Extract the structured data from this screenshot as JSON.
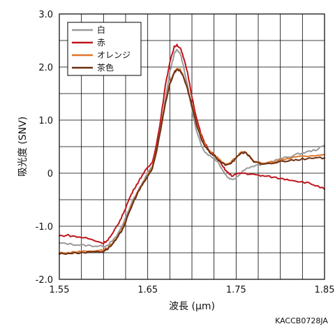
{
  "chart_data": {
    "type": "line",
    "xlabel": "波長 (μm)",
    "ylabel": "吸光度 (SNV)",
    "xlim": [
      1.55,
      1.85
    ],
    "ylim": [
      -2.0,
      3.0
    ],
    "xticks": [
      1.55,
      1.65,
      1.75,
      1.85
    ],
    "xtick_labels": [
      "1.55",
      "1.65",
      "1.75",
      "1.85"
    ],
    "yticks": [
      -2.0,
      -1.0,
      0,
      1.0,
      2.0,
      3.0
    ],
    "ytick_labels": [
      "-2.0",
      "-1.0",
      "0",
      "1.0",
      "2.0",
      "3.0"
    ],
    "grid": true,
    "legend_position": "top-left",
    "series": [
      {
        "name": "白",
        "color": "#999999",
        "points": [
          [
            1.55,
            -1.32
          ],
          [
            1.56,
            -1.33
          ],
          [
            1.57,
            -1.35
          ],
          [
            1.58,
            -1.36
          ],
          [
            1.59,
            -1.37
          ],
          [
            1.6,
            -1.38
          ],
          [
            1.605,
            -1.35
          ],
          [
            1.61,
            -1.28
          ],
          [
            1.615,
            -1.18
          ],
          [
            1.62,
            -1.02
          ],
          [
            1.625,
            -0.85
          ],
          [
            1.63,
            -0.63
          ],
          [
            1.635,
            -0.45
          ],
          [
            1.64,
            -0.3
          ],
          [
            1.645,
            -0.15
          ],
          [
            1.65,
            0.0
          ],
          [
            1.655,
            0.12
          ],
          [
            1.66,
            0.4
          ],
          [
            1.665,
            0.85
          ],
          [
            1.67,
            1.4
          ],
          [
            1.675,
            1.9
          ],
          [
            1.68,
            2.25
          ],
          [
            1.683,
            2.32
          ],
          [
            1.687,
            2.25
          ],
          [
            1.69,
            2.05
          ],
          [
            1.695,
            1.65
          ],
          [
            1.7,
            1.2
          ],
          [
            1.705,
            0.8
          ],
          [
            1.71,
            0.55
          ],
          [
            1.715,
            0.4
          ],
          [
            1.72,
            0.33
          ],
          [
            1.725,
            0.28
          ],
          [
            1.73,
            0.2
          ],
          [
            1.735,
            0.05
          ],
          [
            1.74,
            -0.07
          ],
          [
            1.745,
            -0.12
          ],
          [
            1.75,
            -0.08
          ],
          [
            1.755,
            0.0
          ],
          [
            1.76,
            0.08
          ],
          [
            1.77,
            0.13
          ],
          [
            1.78,
            0.17
          ],
          [
            1.79,
            0.22
          ],
          [
            1.8,
            0.27
          ],
          [
            1.81,
            0.31
          ],
          [
            1.82,
            0.36
          ],
          [
            1.83,
            0.4
          ],
          [
            1.84,
            0.44
          ],
          [
            1.85,
            0.52
          ]
        ]
      },
      {
        "name": "赤",
        "color": "#c0151c",
        "points": [
          [
            1.55,
            -1.18
          ],
          [
            1.56,
            -1.17
          ],
          [
            1.57,
            -1.2
          ],
          [
            1.58,
            -1.22
          ],
          [
            1.59,
            -1.27
          ],
          [
            1.6,
            -1.32
          ],
          [
            1.605,
            -1.25
          ],
          [
            1.61,
            -1.15
          ],
          [
            1.615,
            -1.0
          ],
          [
            1.62,
            -0.85
          ],
          [
            1.625,
            -0.65
          ],
          [
            1.63,
            -0.45
          ],
          [
            1.635,
            -0.28
          ],
          [
            1.64,
            -0.15
          ],
          [
            1.645,
            0.0
          ],
          [
            1.65,
            0.1
          ],
          [
            1.655,
            0.2
          ],
          [
            1.66,
            0.55
          ],
          [
            1.665,
            1.05
          ],
          [
            1.67,
            1.65
          ],
          [
            1.675,
            2.1
          ],
          [
            1.68,
            2.38
          ],
          [
            1.683,
            2.42
          ],
          [
            1.687,
            2.35
          ],
          [
            1.69,
            2.2
          ],
          [
            1.695,
            1.9
          ],
          [
            1.7,
            1.45
          ],
          [
            1.705,
            1.05
          ],
          [
            1.71,
            0.75
          ],
          [
            1.715,
            0.55
          ],
          [
            1.72,
            0.42
          ],
          [
            1.725,
            0.35
          ],
          [
            1.73,
            0.25
          ],
          [
            1.735,
            0.12
          ],
          [
            1.74,
            0.02
          ],
          [
            1.745,
            -0.05
          ],
          [
            1.75,
            -0.02
          ],
          [
            1.755,
            0.0
          ],
          [
            1.76,
            0.0
          ],
          [
            1.77,
            -0.03
          ],
          [
            1.78,
            -0.05
          ],
          [
            1.79,
            -0.07
          ],
          [
            1.8,
            -0.1
          ],
          [
            1.81,
            -0.12
          ],
          [
            1.82,
            -0.15
          ],
          [
            1.83,
            -0.18
          ],
          [
            1.84,
            -0.23
          ],
          [
            1.85,
            -0.3
          ]
        ]
      },
      {
        "name": "オレンジ",
        "color": "#e0762a",
        "points": [
          [
            1.55,
            -1.5
          ],
          [
            1.56,
            -1.5
          ],
          [
            1.57,
            -1.48
          ],
          [
            1.58,
            -1.47
          ],
          [
            1.59,
            -1.46
          ],
          [
            1.6,
            -1.45
          ],
          [
            1.605,
            -1.4
          ],
          [
            1.61,
            -1.32
          ],
          [
            1.615,
            -1.22
          ],
          [
            1.62,
            -1.08
          ],
          [
            1.625,
            -0.9
          ],
          [
            1.63,
            -0.68
          ],
          [
            1.635,
            -0.48
          ],
          [
            1.64,
            -0.32
          ],
          [
            1.645,
            -0.18
          ],
          [
            1.65,
            -0.05
          ],
          [
            1.655,
            0.1
          ],
          [
            1.66,
            0.42
          ],
          [
            1.665,
            0.88
          ],
          [
            1.67,
            1.35
          ],
          [
            1.675,
            1.7
          ],
          [
            1.68,
            1.92
          ],
          [
            1.683,
            1.97
          ],
          [
            1.687,
            1.95
          ],
          [
            1.69,
            1.85
          ],
          [
            1.695,
            1.6
          ],
          [
            1.7,
            1.3
          ],
          [
            1.705,
            0.95
          ],
          [
            1.71,
            0.7
          ],
          [
            1.715,
            0.52
          ],
          [
            1.72,
            0.42
          ],
          [
            1.725,
            0.35
          ],
          [
            1.73,
            0.27
          ],
          [
            1.735,
            0.2
          ],
          [
            1.74,
            0.17
          ],
          [
            1.745,
            0.22
          ],
          [
            1.75,
            0.3
          ],
          [
            1.755,
            0.4
          ],
          [
            1.76,
            0.4
          ],
          [
            1.765,
            0.33
          ],
          [
            1.77,
            0.23
          ],
          [
            1.78,
            0.18
          ],
          [
            1.79,
            0.2
          ],
          [
            1.8,
            0.25
          ],
          [
            1.81,
            0.28
          ],
          [
            1.82,
            0.3
          ],
          [
            1.83,
            0.32
          ],
          [
            1.84,
            0.34
          ],
          [
            1.85,
            0.35
          ]
        ]
      },
      {
        "name": "茶色",
        "color": "#6b2e12",
        "points": [
          [
            1.55,
            -1.52
          ],
          [
            1.56,
            -1.51
          ],
          [
            1.57,
            -1.5
          ],
          [
            1.58,
            -1.49
          ],
          [
            1.59,
            -1.48
          ],
          [
            1.6,
            -1.47
          ],
          [
            1.605,
            -1.42
          ],
          [
            1.61,
            -1.34
          ],
          [
            1.615,
            -1.24
          ],
          [
            1.62,
            -1.1
          ],
          [
            1.625,
            -0.92
          ],
          [
            1.63,
            -0.7
          ],
          [
            1.635,
            -0.5
          ],
          [
            1.64,
            -0.33
          ],
          [
            1.645,
            -0.19
          ],
          [
            1.65,
            -0.06
          ],
          [
            1.655,
            0.08
          ],
          [
            1.66,
            0.4
          ],
          [
            1.665,
            0.85
          ],
          [
            1.67,
            1.32
          ],
          [
            1.675,
            1.68
          ],
          [
            1.68,
            1.9
          ],
          [
            1.683,
            1.95
          ],
          [
            1.687,
            1.93
          ],
          [
            1.69,
            1.82
          ],
          [
            1.695,
            1.58
          ],
          [
            1.7,
            1.27
          ],
          [
            1.705,
            0.92
          ],
          [
            1.71,
            0.67
          ],
          [
            1.715,
            0.5
          ],
          [
            1.72,
            0.4
          ],
          [
            1.725,
            0.33
          ],
          [
            1.73,
            0.25
          ],
          [
            1.735,
            0.18
          ],
          [
            1.74,
            0.15
          ],
          [
            1.745,
            0.2
          ],
          [
            1.75,
            0.28
          ],
          [
            1.755,
            0.38
          ],
          [
            1.76,
            0.39
          ],
          [
            1.765,
            0.32
          ],
          [
            1.77,
            0.22
          ],
          [
            1.78,
            0.16
          ],
          [
            1.79,
            0.18
          ],
          [
            1.8,
            0.22
          ],
          [
            1.81,
            0.24
          ],
          [
            1.82,
            0.26
          ],
          [
            1.83,
            0.27
          ],
          [
            1.84,
            0.28
          ],
          [
            1.85,
            0.29
          ]
        ]
      }
    ]
  },
  "figure_code": "KACCB0728JA"
}
